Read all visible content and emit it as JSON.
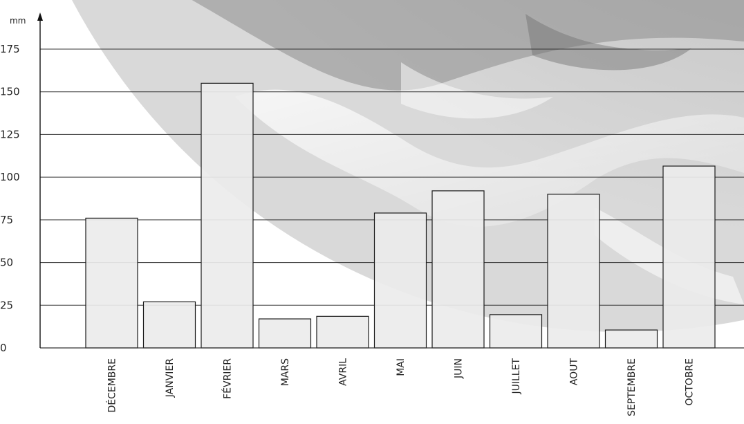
{
  "chart_data": {
    "type": "bar",
    "ylabel": "mm",
    "ylim": [
      0,
      185
    ],
    "yticks": [
      0,
      25,
      50,
      75,
      100,
      125,
      150,
      175
    ],
    "grid": true,
    "categories": [
      "DÉCEMBRE",
      "JANVIER",
      "FÉVRIER",
      "MARS",
      "AVRIL",
      "MAI",
      "JUIN",
      "JUILLET",
      "AOUT",
      "SEPTEMBRE",
      "OCTOBRE"
    ],
    "values": [
      76,
      27,
      155,
      17,
      18.5,
      79,
      92,
      19.5,
      90,
      10.5,
      106.5
    ],
    "colors": {
      "bar_fill": "#ececec",
      "bar_stroke": "#1a1a1a",
      "grid": "#333333",
      "background_light": "#e6e6e6",
      "background_dark": "#777777"
    }
  }
}
